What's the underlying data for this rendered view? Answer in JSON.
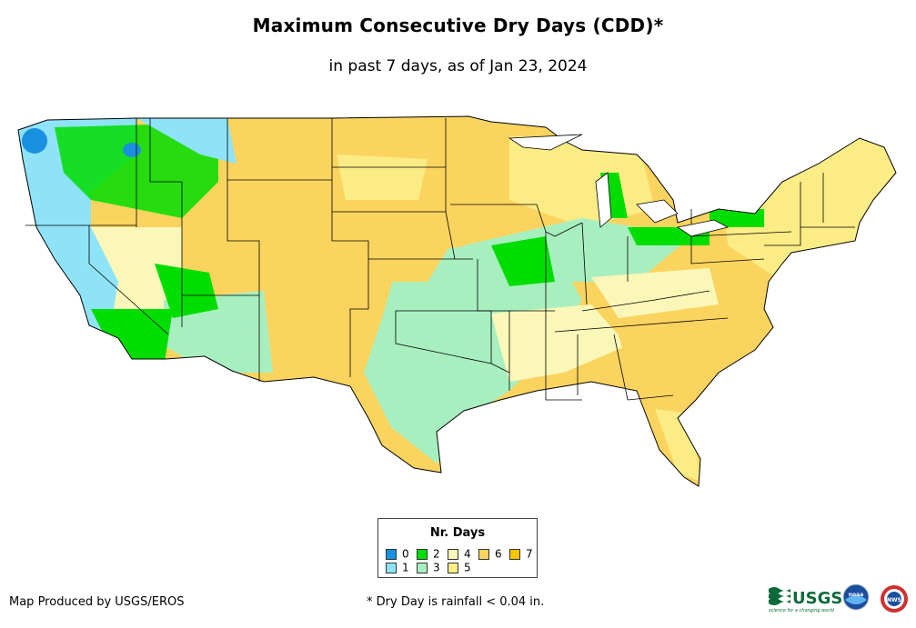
{
  "title": "Maximum Consecutive Dry Days (CDD)*",
  "subtitle": "in past 7 days, as of Jan 23, 2024",
  "legend": {
    "title": "Nr. Days",
    "items": [
      {
        "label": "0",
        "color": "#1a90e0"
      },
      {
        "label": "1",
        "color": "#8fe3f8"
      },
      {
        "label": "2",
        "color": "#00dd00"
      },
      {
        "label": "3",
        "color": "#a8efc0"
      },
      {
        "label": "4",
        "color": "#fbf7b8"
      },
      {
        "label": "5",
        "color": "#fbec86"
      },
      {
        "label": "6",
        "color": "#fbd45f"
      },
      {
        "label": "7",
        "color": "#f9c400"
      }
    ]
  },
  "producer": "Map Produced by USGS/EROS",
  "footnote": "* Dry Day is rainfall < 0.04 in.",
  "logos": {
    "usgs": "USGS",
    "usgs_tagline": "science for a changing world",
    "noaa": "noaa",
    "nws": "NWS"
  },
  "map": {
    "region": "Contiguous United States",
    "regions": [
      {
        "name": "Pacific Coast (CA, OR, WA)",
        "days": 1
      },
      {
        "name": "Northern Rockies / Idaho",
        "days": 2
      },
      {
        "name": "Southern California / Arizona",
        "days": 3
      },
      {
        "name": "Nevada",
        "days": 4
      },
      {
        "name": "Great Plains",
        "days": 6
      },
      {
        "name": "Texas / Oklahoma",
        "days": 3
      },
      {
        "name": "Midwest",
        "days": 3
      },
      {
        "name": "Southeast",
        "days": 6
      },
      {
        "name": "Northeast",
        "days": 5
      }
    ]
  }
}
